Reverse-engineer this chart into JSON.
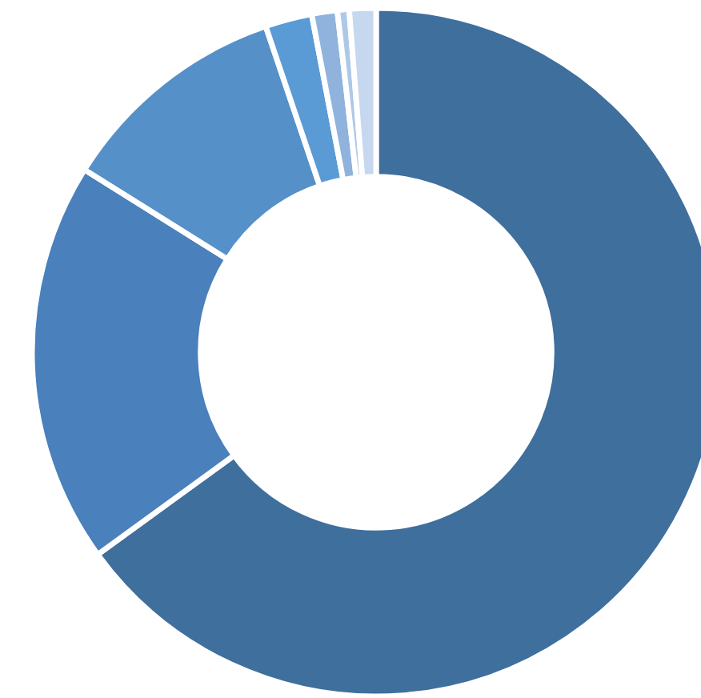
{
  "chart_data": {
    "type": "donut",
    "categories": [
      null,
      null,
      null,
      null,
      null,
      null,
      null
    ],
    "values": [
      65.0,
      18.9,
      10.9,
      2.2,
      1.2,
      0.55,
      1.25
    ],
    "colors": [
      "#3f6f9c",
      "#4a80bb",
      "#5590c8",
      "#5a9bd5",
      "#8fb3dc",
      "#aec8e8",
      "#c5d8ef"
    ]
  }
}
